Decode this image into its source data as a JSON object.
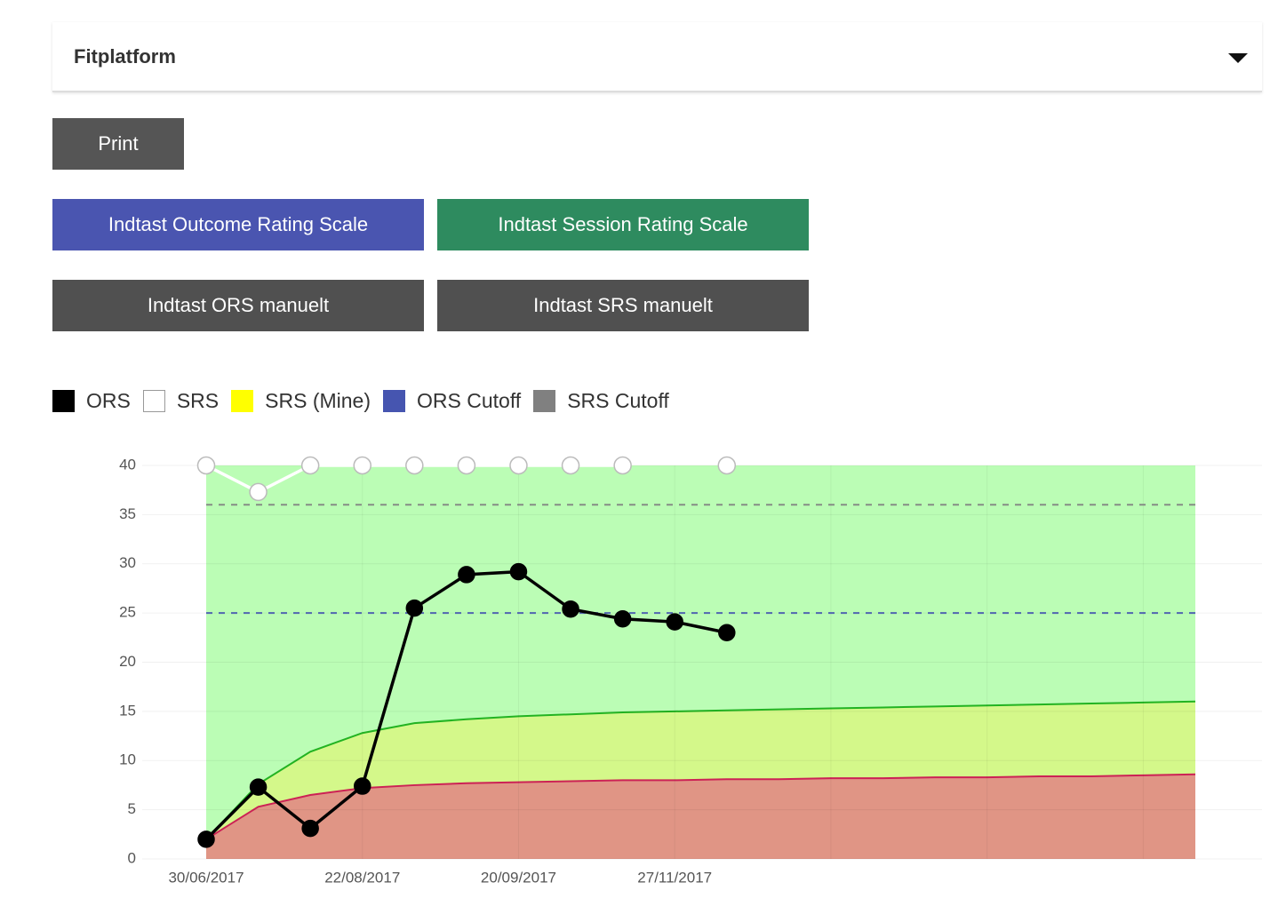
{
  "header": {
    "select": "Fitplatform"
  },
  "buttons": {
    "print": "Print",
    "ors": "Indtast Outcome Rating Scale",
    "srs": "Indtast Session Rating Scale",
    "ors_manual": "Indtast ORS manuelt",
    "srs_manual": "Indtast SRS manuelt"
  },
  "chart_data": {
    "type": "line",
    "categories": [
      "30/06/2017",
      null,
      null,
      "22/08/2017",
      null,
      null,
      "20/09/2017",
      null,
      null,
      "27/11/2017",
      null,
      null,
      null,
      null,
      null,
      null,
      null,
      null,
      null,
      null
    ],
    "series": [
      {
        "name": "ORS",
        "color": "#000000",
        "values": [
          2.0,
          7.3,
          3.1,
          7.4,
          25.5,
          28.9,
          29.2,
          25.4,
          24.4,
          24.1,
          23.0,
          null,
          null,
          null,
          null,
          null,
          null,
          null,
          null,
          null
        ]
      },
      {
        "name": "SRS",
        "color": "#ffffff",
        "values": [
          40,
          37.3,
          40,
          40,
          40,
          40,
          40,
          40,
          40,
          null,
          40,
          null,
          null,
          null,
          null,
          null,
          null,
          null,
          null,
          null
        ]
      },
      {
        "name": "SRS (Mine)",
        "color": "#ffff00",
        "values": [
          null,
          null,
          null,
          null,
          null,
          null,
          null,
          null,
          null,
          null,
          null,
          null,
          null,
          null,
          null,
          null,
          null,
          null,
          null,
          null
        ]
      }
    ],
    "cutoffs": [
      {
        "name": "ORS Cutoff",
        "color": "#4655b0",
        "value": 25
      },
      {
        "name": "SRS Cutoff",
        "color": "#808080",
        "value": 36
      }
    ],
    "bands": [
      {
        "color": "#e09585",
        "line_color": "#cc2255",
        "values": [
          2,
          5.3,
          6.5,
          7.2,
          7.5,
          7.7,
          7.8,
          7.9,
          8.0,
          8.0,
          8.1,
          8.1,
          8.2,
          8.2,
          8.3,
          8.3,
          8.4,
          8.4,
          8.5,
          8.6
        ]
      },
      {
        "color": "#d4f88a",
        "line_color": "#22b322",
        "values": [
          2,
          7.6,
          10.9,
          12.8,
          13.8,
          14.2,
          14.5,
          14.7,
          14.9,
          15.0,
          15.1,
          15.2,
          15.3,
          15.4,
          15.5,
          15.6,
          15.7,
          15.8,
          15.9,
          16.0
        ]
      }
    ],
    "band_top_color": "#bbfdb5",
    "ylim": [
      0,
      40
    ],
    "yticks": [
      0,
      5,
      10,
      15,
      20,
      25,
      30,
      35,
      40
    ],
    "grid": true
  }
}
